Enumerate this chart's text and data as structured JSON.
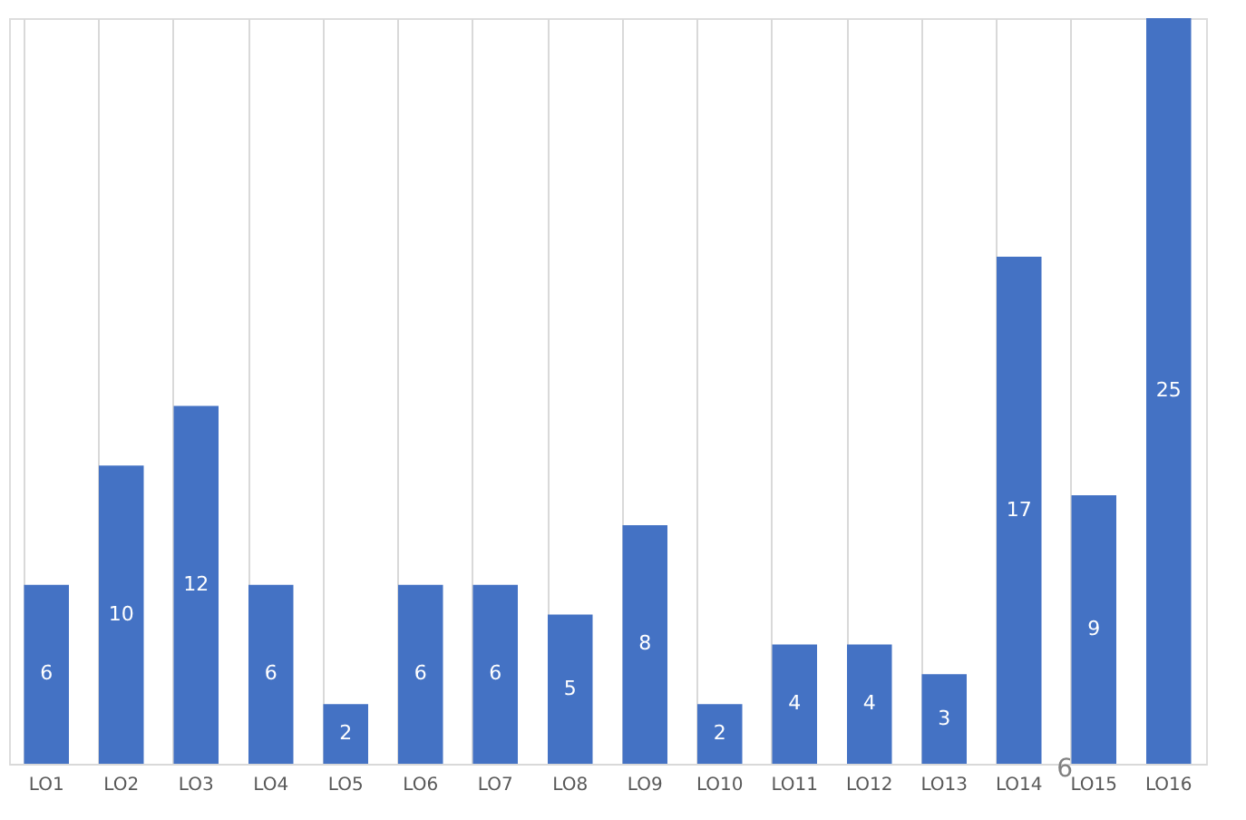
{
  "chart_data": {
    "type": "bar",
    "categories": [
      "LO1",
      "LO2",
      "LO3",
      "LO4",
      "LO5",
      "LO6",
      "LO7",
      "LO8",
      "LO9",
      "LO10",
      "LO11",
      "LO12",
      "LO13",
      "LO14",
      "LO15",
      "LO16"
    ],
    "values": [
      6,
      10,
      12,
      6,
      2,
      6,
      6,
      5,
      8,
      2,
      4,
      4,
      3,
      17,
      9,
      25
    ],
    "color": "#4472c4",
    "ylim": [
      0,
      25
    ],
    "data_labels": true,
    "grid": "x",
    "tick_labels": "x",
    "annotations": [
      "6"
    ]
  }
}
